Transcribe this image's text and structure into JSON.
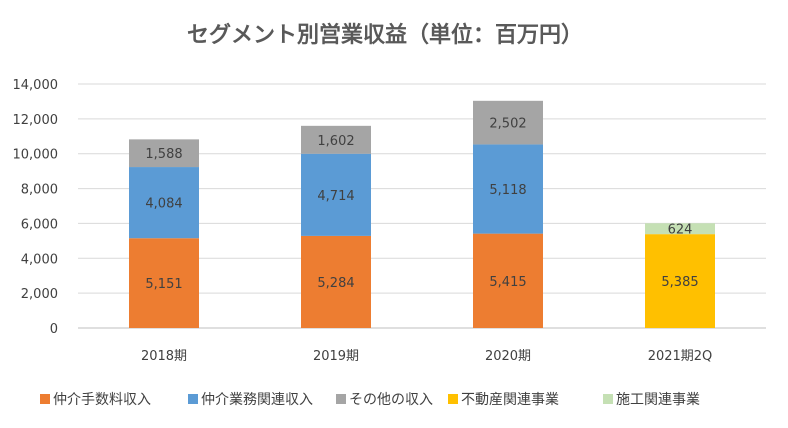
{
  "chart_data": {
    "type": "bar",
    "stacked": true,
    "title": "セグメント別営業収益（単位：百万円）",
    "xlabel": "",
    "ylabel": "",
    "ylim": [
      0,
      14000
    ],
    "yticks": [
      "0",
      "2,000",
      "4,000",
      "6,000",
      "8,000",
      "10,000",
      "12,000",
      "14,000"
    ],
    "grid": true,
    "legend_position": "bottom",
    "categories": [
      "2018期",
      "2019期",
      "2020期",
      "2021期2Q"
    ],
    "series": [
      {
        "name": "仲介手数料収入",
        "color": "#ED7D31",
        "values": [
          5151,
          5284,
          5415,
          null
        ]
      },
      {
        "name": "仲介業務関連収入",
        "color": "#5B9BD5",
        "values": [
          4084,
          4714,
          5118,
          null
        ]
      },
      {
        "name": "その他の収入",
        "color": "#A5A5A5",
        "values": [
          1588,
          1602,
          2502,
          null
        ]
      },
      {
        "name": "不動産関連事業",
        "color": "#FFC000",
        "values": [
          null,
          null,
          null,
          5385
        ]
      },
      {
        "name": "施工関連事業",
        "color": "#C5E0B4",
        "values": [
          null,
          null,
          null,
          624
        ]
      }
    ]
  }
}
